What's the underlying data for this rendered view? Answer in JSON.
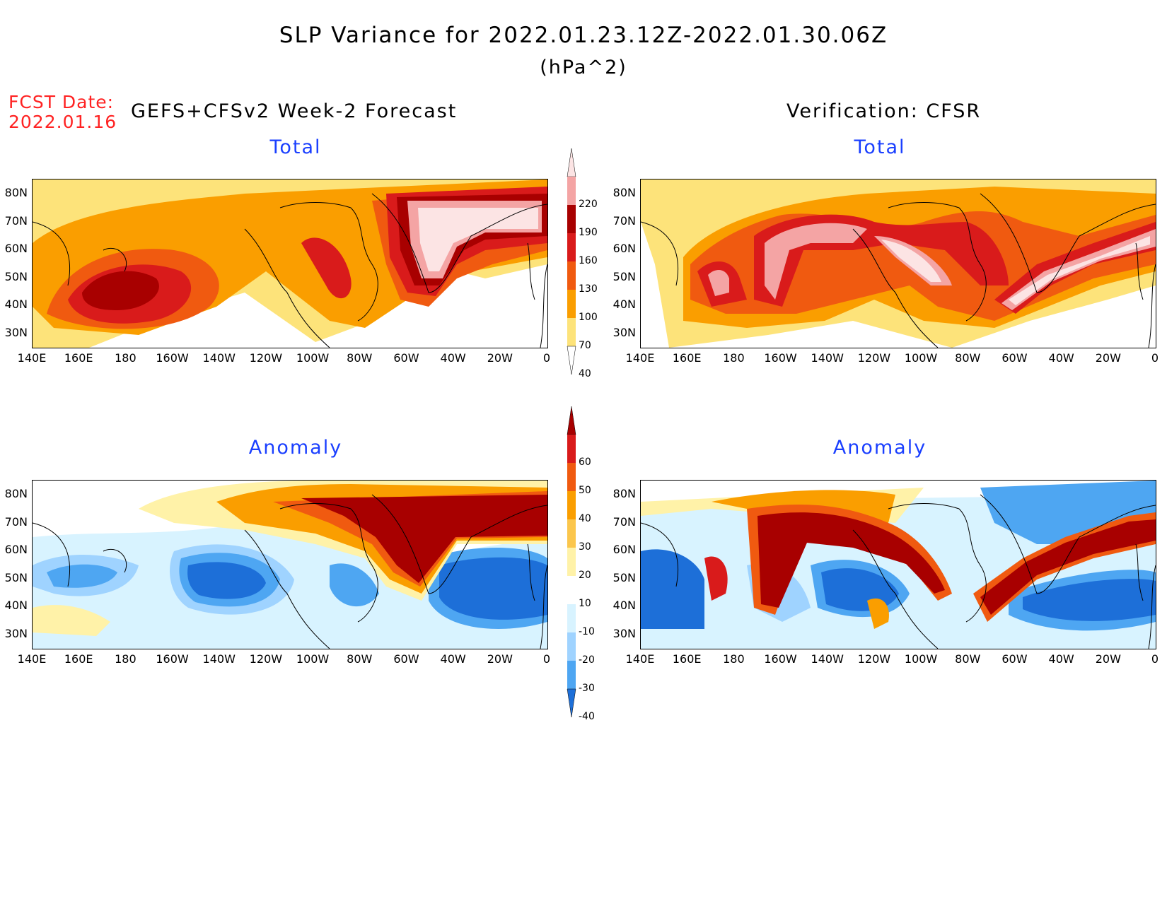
{
  "header": {
    "title": "SLP Variance for 2022.01.23.12Z-2022.01.30.06Z",
    "units": "(hPa^2)",
    "fcst_date_label": "FCST Date:",
    "fcst_date_value": "2022.01.16",
    "left_header": "GEFS+CFSv2 Week-2 Forecast",
    "right_header": "Verification: CFSR"
  },
  "panels": {
    "top_left_title": "Total",
    "top_right_title": "Total",
    "bottom_left_title": "Anomaly",
    "bottom_right_title": "Anomaly"
  },
  "axes": {
    "lat_labels": [
      "80N",
      "70N",
      "60N",
      "50N",
      "40N",
      "30N"
    ],
    "lon_labels": [
      "140E",
      "160E",
      "180",
      "160W",
      "140W",
      "120W",
      "100W",
      "80W",
      "60W",
      "40W",
      "20W",
      "0"
    ]
  },
  "colorbars": {
    "total": {
      "labels": [
        "220",
        "190",
        "160",
        "130",
        "100",
        "70",
        "40"
      ],
      "colors": [
        "#fce4e4",
        "#f4a4a4",
        "#a80000",
        "#d91b1b",
        "#f05a10",
        "#fa9e00",
        "#fde37a",
        "#ffffff"
      ]
    },
    "anomaly": {
      "labels": [
        "60",
        "50",
        "40",
        "30",
        "20",
        "10",
        "-10",
        "-20",
        "-30",
        "-40"
      ],
      "colors": [
        "#a80000",
        "#d91b1b",
        "#f05a10",
        "#fa9e00",
        "#fbc64c",
        "#fff2a8",
        "#ffffff",
        "#d8f3ff",
        "#9fd3ff",
        "#4ea6f2",
        "#1d6fd8"
      ]
    }
  }
}
